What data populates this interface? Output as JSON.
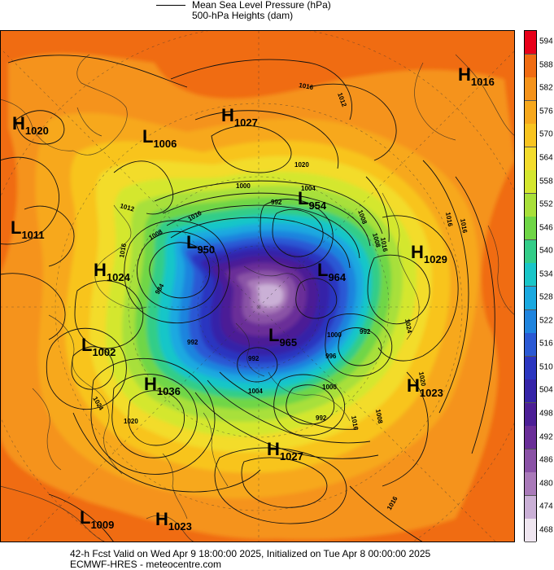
{
  "header": {
    "line1": "Mean Sea Level Pressure (hPa)",
    "line2": "500-hPa Heights (dam)"
  },
  "footer": {
    "line1": "42-h Fcst Valid on Wed Apr  9 18:00:00 2025, Initialized on Tue Apr  8 00:00:00 2025",
    "line2": "ECMWF-HRES  - meteocentre.com"
  },
  "colorbar": {
    "labels": [
      "594",
      "588",
      "582",
      "576",
      "570",
      "564",
      "558",
      "552",
      "546",
      "540",
      "534",
      "528",
      "522",
      "516",
      "510",
      "504",
      "498",
      "492",
      "486",
      "480",
      "474",
      "468"
    ],
    "colors": [
      "#e8001a",
      "#f06c12",
      "#f5931a",
      "#f7a81c",
      "#f8c41f",
      "#f3dc2c",
      "#d4e72f",
      "#a8e03a",
      "#6fd646",
      "#33cd88",
      "#19c6c8",
      "#1aa9e0",
      "#1f84de",
      "#2a59d4",
      "#2b36c0",
      "#3524a8",
      "#4c1f96",
      "#6a2e98",
      "#8a52a6",
      "#a97ab9",
      "#cab0d6",
      "#efe6f0"
    ]
  },
  "map": {
    "colors": {
      "z588": "#f06c12",
      "z582": "#f5931a",
      "z576": "#f7a81c",
      "z570": "#f8c41f",
      "z564": "#f3dc2c",
      "z558": "#d4e72f",
      "z552": "#a8e03a",
      "z546": "#6fd646",
      "z540": "#33cd88",
      "z534": "#19c6c8",
      "z528": "#1aa9e0",
      "z522": "#1f84de",
      "z516": "#2a59d4",
      "z510": "#2b36c0",
      "z504": "#3524a8",
      "z498": "#4c1f96",
      "z492": "#6a2e98",
      "z486": "#8a52a6",
      "z480": "#a97ab9",
      "z474": "#cab0d6"
    },
    "systems": [
      {
        "letter": "H",
        "value": "1020"
      },
      {
        "letter": "L",
        "value": "1006"
      },
      {
        "letter": "H",
        "value": "1027"
      },
      {
        "letter": "H",
        "value": "1016"
      },
      {
        "letter": "L",
        "value": "954"
      },
      {
        "letter": "L",
        "value": "1011"
      },
      {
        "letter": "L",
        "value": "950"
      },
      {
        "letter": "H",
        "value": "1024"
      },
      {
        "letter": "L",
        "value": "964"
      },
      {
        "letter": "H",
        "value": "1029"
      },
      {
        "letter": "L",
        "value": "1002"
      },
      {
        "letter": "L",
        "value": "965"
      },
      {
        "letter": "H",
        "value": "1036"
      },
      {
        "letter": "H",
        "value": "1023"
      },
      {
        "letter": "H",
        "value": "1027"
      },
      {
        "letter": "L",
        "value": "1009"
      },
      {
        "letter": "H",
        "value": "1023"
      }
    ],
    "isobar_labels": [
      "1016",
      "1012",
      "1020",
      "1004",
      "1008",
      "1008",
      "1000",
      "992",
      "1016",
      "1012",
      "1008",
      "1016",
      "1016",
      "992",
      "984",
      "1024",
      "1020",
      "992",
      "1000",
      "996",
      "992",
      "1000",
      "1008",
      "1016",
      "1016",
      "992",
      "1004",
      "1020",
      "1024",
      "1016",
      "1016"
    ]
  }
}
